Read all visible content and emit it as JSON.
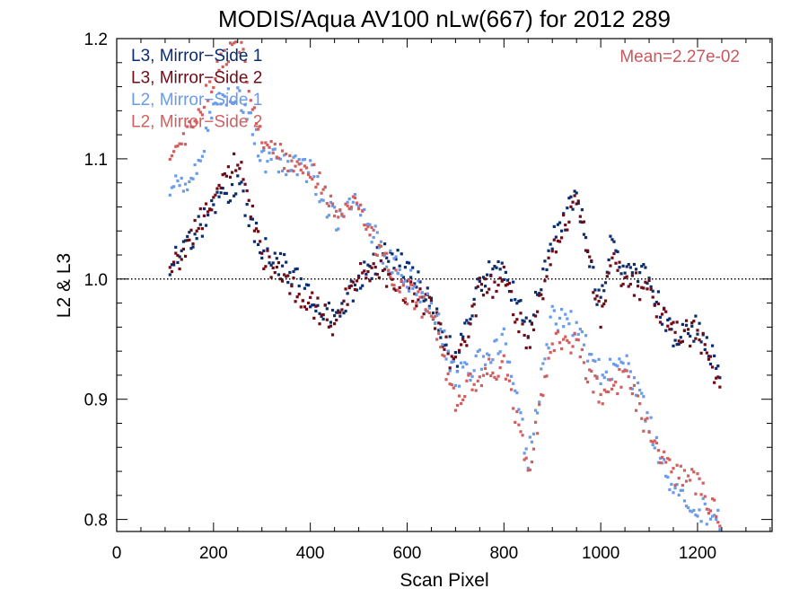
{
  "chart_data": {
    "type": "scatter",
    "title": "MODIS/Aqua AV100 nLw(667) for 2012 289",
    "xlabel": "Scan Pixel",
    "ylabel": "L2 & L3",
    "xlim": [
      0,
      1354
    ],
    "ylim": [
      0.79,
      1.2
    ],
    "xticks": [
      0,
      200,
      400,
      600,
      800,
      1000,
      1200
    ],
    "yticks": [
      0.8,
      0.9,
      1.0,
      1.1,
      1.2
    ],
    "xtick_labels": [
      "0",
      "200",
      "400",
      "600",
      "800",
      "1000",
      "1200"
    ],
    "ytick_labels": [
      "0.8",
      "0.9",
      "1.0",
      "1.1",
      "1.2"
    ],
    "reference_line": {
      "y": 1.0,
      "style": "dotted"
    },
    "annotation": {
      "text": "Mean=2.27e-02",
      "color": "#c8585c",
      "position": "top-right"
    },
    "legend_position": "top-left",
    "series": [
      {
        "name": "L3, Mirror−Side 1",
        "color": "#0b2d6e",
        "points": [
          [
            110,
            1.01
          ],
          [
            150,
            1.03
          ],
          [
            200,
            1.06
          ],
          [
            250,
            1.08
          ],
          [
            300,
            1.025
          ],
          [
            350,
            1.01
          ],
          [
            400,
            0.985
          ],
          [
            450,
            0.965
          ],
          [
            500,
            1.0
          ],
          [
            550,
            1.02
          ],
          [
            600,
            1.01
          ],
          [
            650,
            0.98
          ],
          [
            700,
            0.93
          ],
          [
            750,
            1.0
          ],
          [
            800,
            1.01
          ],
          [
            850,
            0.955
          ],
          [
            900,
            1.03
          ],
          [
            950,
            1.07
          ],
          [
            1000,
            0.975
          ],
          [
            1020,
            1.03
          ],
          [
            1050,
            1.01
          ],
          [
            1100,
            1.0
          ],
          [
            1150,
            0.95
          ],
          [
            1200,
            0.96
          ],
          [
            1250,
            0.92
          ]
        ]
      },
      {
        "name": "L3, Mirror−Side 2",
        "color": "#6e0b16",
        "points": [
          [
            110,
            1.0
          ],
          [
            150,
            1.035
          ],
          [
            200,
            1.065
          ],
          [
            250,
            1.1
          ],
          [
            300,
            1.02
          ],
          [
            350,
            1.0
          ],
          [
            400,
            0.98
          ],
          [
            450,
            0.96
          ],
          [
            500,
            1.005
          ],
          [
            550,
            1.005
          ],
          [
            600,
            0.99
          ],
          [
            650,
            0.975
          ],
          [
            700,
            0.925
          ],
          [
            750,
            0.99
          ],
          [
            800,
            1.0
          ],
          [
            850,
            0.945
          ],
          [
            900,
            1.02
          ],
          [
            950,
            1.07
          ],
          [
            1000,
            0.965
          ],
          [
            1020,
            1.02
          ],
          [
            1050,
            1.0
          ],
          [
            1100,
            0.99
          ],
          [
            1150,
            0.955
          ],
          [
            1200,
            0.955
          ],
          [
            1250,
            0.91
          ]
        ]
      },
      {
        "name": "L2, Mirror−Side 1",
        "color": "#6a9bea",
        "points": [
          [
            110,
            1.08
          ],
          [
            150,
            1.08
          ],
          [
            200,
            1.14
          ],
          [
            250,
            1.16
          ],
          [
            300,
            1.1
          ],
          [
            350,
            1.095
          ],
          [
            400,
            1.09
          ],
          [
            450,
            1.05
          ],
          [
            500,
            1.065
          ],
          [
            550,
            1.02
          ],
          [
            600,
            1.0
          ],
          [
            650,
            0.98
          ],
          [
            700,
            0.92
          ],
          [
            750,
            0.93
          ],
          [
            800,
            0.95
          ],
          [
            850,
            0.85
          ],
          [
            900,
            0.97
          ],
          [
            950,
            0.96
          ],
          [
            1000,
            0.92
          ],
          [
            1050,
            0.93
          ],
          [
            1100,
            0.88
          ],
          [
            1150,
            0.82
          ],
          [
            1200,
            0.81
          ],
          [
            1250,
            0.8
          ]
        ]
      },
      {
        "name": "L2, Mirror−Side 2",
        "color": "#d06060",
        "points": [
          [
            110,
            1.1
          ],
          [
            150,
            1.12
          ],
          [
            200,
            1.17
          ],
          [
            250,
            1.2
          ],
          [
            300,
            1.12
          ],
          [
            350,
            1.1
          ],
          [
            400,
            1.095
          ],
          [
            450,
            1.055
          ],
          [
            500,
            1.065
          ],
          [
            550,
            1.015
          ],
          [
            600,
            0.99
          ],
          [
            650,
            0.97
          ],
          [
            700,
            0.9
          ],
          [
            750,
            0.92
          ],
          [
            800,
            0.93
          ],
          [
            850,
            0.84
          ],
          [
            900,
            0.95
          ],
          [
            950,
            0.945
          ],
          [
            1000,
            0.9
          ],
          [
            1050,
            0.92
          ],
          [
            1100,
            0.87
          ],
          [
            1150,
            0.84
          ],
          [
            1200,
            0.83
          ],
          [
            1250,
            0.8
          ]
        ]
      }
    ]
  }
}
